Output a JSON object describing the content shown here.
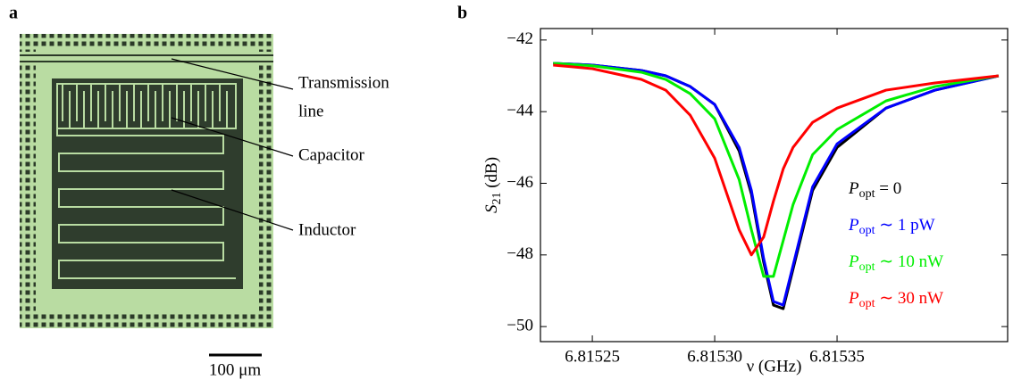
{
  "panel_labels": [
    "a",
    "b"
  ],
  "micrograph": {
    "labels": [
      "Transmission",
      "line",
      "Capacitor",
      "Inductor"
    ],
    "scale_bar": "100 μm"
  },
  "chart_data": {
    "type": "line",
    "x_label": "ν (GHz)",
    "y_label": "S21 (dB)",
    "x": [
      6.815234,
      6.81525,
      6.81527,
      6.81528,
      6.81529,
      6.8153,
      6.81531,
      6.815315,
      6.81532,
      6.815324,
      6.815328,
      6.815332,
      6.81534,
      6.81535,
      6.81537,
      6.81539,
      6.815416
    ],
    "series": [
      {
        "name": "Popt = 0",
        "color": "#000000",
        "values": [
          -42.65,
          -42.7,
          -42.85,
          -43.0,
          -43.3,
          -43.8,
          -45.1,
          -46.3,
          -48.2,
          -49.4,
          -49.5,
          -48.4,
          -46.2,
          -45.0,
          -43.9,
          -43.4,
          -43.0
        ]
      },
      {
        "name": "Popt ∼ 1 pW",
        "color": "#0000ff",
        "values": [
          -42.65,
          -42.7,
          -42.85,
          -43.0,
          -43.3,
          -43.8,
          -45.0,
          -46.2,
          -48.1,
          -49.3,
          -49.4,
          -48.3,
          -46.1,
          -44.9,
          -43.9,
          -43.4,
          -43.0
        ]
      },
      {
        "name": "Popt ∼ 10 nW",
        "color": "#00ee00",
        "values": [
          -42.65,
          -42.72,
          -42.9,
          -43.1,
          -43.5,
          -44.2,
          -45.9,
          -47.3,
          -48.6,
          -48.6,
          -47.6,
          -46.6,
          -45.2,
          -44.5,
          -43.7,
          -43.3,
          -43.0
        ]
      },
      {
        "name": "Popt ∼ 30 nW",
        "color": "#ff0000",
        "values": [
          -42.7,
          -42.8,
          -43.1,
          -43.4,
          -44.1,
          -45.3,
          -47.3,
          -48.0,
          -47.5,
          -46.5,
          -45.6,
          -45.0,
          -44.3,
          -43.9,
          -43.4,
          -43.2,
          -43.0
        ]
      }
    ],
    "xlim": [
      6.8152288,
      6.8154197
    ],
    "ylim": [
      -50.42,
      -41.68
    ],
    "xticks": [
      6.81525,
      {
        "value": 6.8153,
        "label": "6.81530"
      },
      6.81535
    ],
    "yticks": [
      {
        "value": -42,
        "label": "−42"
      },
      {
        "value": -44,
        "label": "−44"
      },
      {
        "value": -46,
        "label": "−46"
      },
      {
        "value": -48,
        "label": "−48"
      },
      {
        "value": -50,
        "label": "−50"
      }
    ]
  }
}
